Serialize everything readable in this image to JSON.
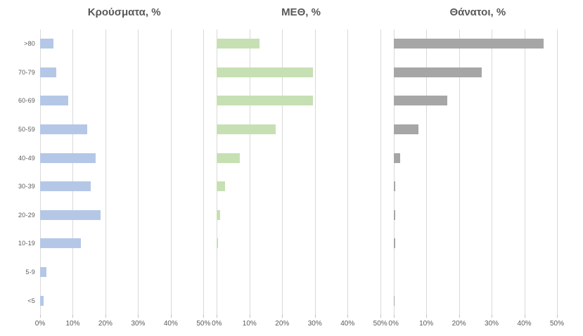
{
  "layout_colors": {
    "background": "#ffffff",
    "gridline": "#d9d9d9",
    "tick": "#bfbfbf",
    "axis_text": "#595959",
    "title_text": "#595959"
  },
  "chart_data": [
    {
      "type": "bar",
      "orientation": "horizontal",
      "title": "Κρούσματα, %",
      "categories": [
        ">80",
        "70-79",
        "60-69",
        "50-59",
        "40-49",
        "30-39",
        "20-29",
        "10-19",
        "5-9",
        "<5"
      ],
      "values": [
        4,
        5,
        8.5,
        14.5,
        17,
        15.5,
        18.5,
        12.5,
        2,
        1
      ],
      "color": "#b4c7e7",
      "xlim": [
        0,
        51.5
      ],
      "xticks": [
        {
          "value": 0,
          "label": "0%"
        },
        {
          "value": 10,
          "label": "10%"
        },
        {
          "value": 20,
          "label": "20%"
        },
        {
          "value": 30,
          "label": "30%"
        },
        {
          "value": 40,
          "label": "40%"
        },
        {
          "value": 50,
          "label": "50%"
        }
      ],
      "grid": true,
      "legend": false
    },
    {
      "type": "bar",
      "orientation": "horizontal",
      "title": "ΜΕΘ, %",
      "categories": [
        ">80",
        "70-79",
        "60-69",
        "50-59",
        "40-49",
        "30-39",
        "20-29",
        "10-19",
        "5-9",
        "<5"
      ],
      "values": [
        13,
        29.5,
        29.5,
        18,
        7,
        2.5,
        1,
        0.3,
        0,
        0
      ],
      "color": "#c6e0b4",
      "xlim": [
        0,
        51.5
      ],
      "xticks": [
        {
          "value": 0,
          "label": "0%"
        },
        {
          "value": 10,
          "label": "10%"
        },
        {
          "value": 20,
          "label": "20%"
        },
        {
          "value": 30,
          "label": "30%"
        },
        {
          "value": 40,
          "label": "40%"
        },
        {
          "value": 50,
          "label": "50%"
        }
      ],
      "grid": true,
      "legend": false
    },
    {
      "type": "bar",
      "orientation": "horizontal",
      "title": "Θάνατοι, %",
      "categories": [
        ">80",
        "70-79",
        "60-69",
        "50-59",
        "40-49",
        "30-39",
        "20-29",
        "10-19",
        "5-9",
        "<5"
      ],
      "values": [
        46,
        27,
        16.5,
        7.5,
        2,
        0.6,
        0.4,
        0.4,
        0,
        0.3
      ],
      "color": "#a6a6a6",
      "xlim": [
        0,
        51.5
      ],
      "xticks": [
        {
          "value": 0,
          "label": "0%"
        },
        {
          "value": 10,
          "label": "10%"
        },
        {
          "value": 20,
          "label": "20%"
        },
        {
          "value": 30,
          "label": "30%"
        },
        {
          "value": 40,
          "label": "40%"
        },
        {
          "value": 50,
          "label": "50%"
        }
      ],
      "grid": true,
      "legend": false
    }
  ]
}
